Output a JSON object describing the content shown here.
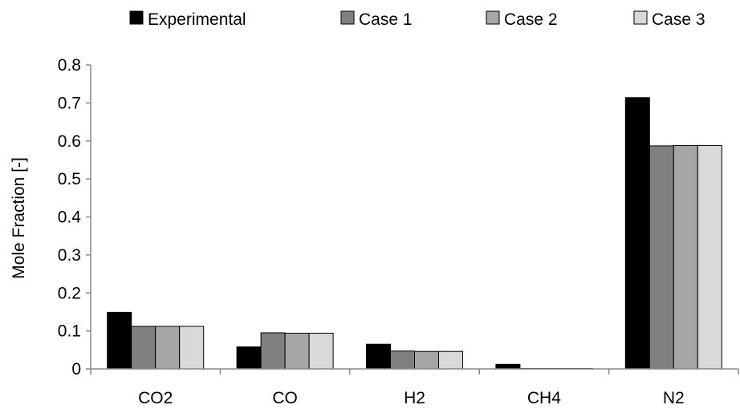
{
  "chart_data": {
    "type": "bar",
    "title": "",
    "xlabel": "",
    "ylabel": "Mole Fraction [-]",
    "ylim": [
      0,
      0.8
    ],
    "yticks": [
      "0",
      "0.1",
      "0.2",
      "0.3",
      "0.4",
      "0.5",
      "0.6",
      "0.7",
      "0.8"
    ],
    "categories": [
      "CO2",
      "CO",
      "H2",
      "CH4",
      "N2"
    ],
    "series": [
      {
        "name": "Experimental",
        "color": "#000000",
        "values": [
          0.149,
          0.058,
          0.065,
          0.012,
          0.714
        ]
      },
      {
        "name": "Case 1",
        "color": "#808080",
        "values": [
          0.112,
          0.095,
          0.047,
          0.001,
          0.587
        ]
      },
      {
        "name": "Case 2",
        "color": "#a6a6a6",
        "values": [
          0.112,
          0.094,
          0.046,
          0.001,
          0.588
        ]
      },
      {
        "name": "Case 3",
        "color": "#d9d9d9",
        "values": [
          0.112,
          0.094,
          0.046,
          0.001,
          0.588
        ]
      }
    ],
    "legend_position": "top",
    "grid": false
  }
}
